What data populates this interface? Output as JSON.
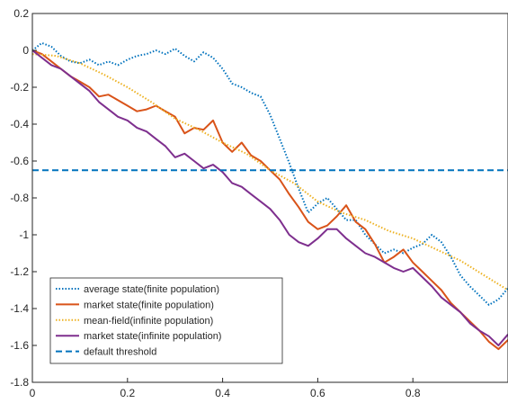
{
  "chart_data": {
    "type": "line",
    "xlim": [
      0,
      1
    ],
    "ylim": [
      -1.8,
      0.2
    ],
    "x_ticks": [
      "0",
      "0.2",
      "0.4",
      "0.6",
      "0.8"
    ],
    "x_tick_values": [
      0,
      0.2,
      0.4,
      0.6,
      0.8
    ],
    "y_ticks": [
      "0.2",
      "0",
      "-0.2",
      "-0.4",
      "-0.6",
      "-0.8",
      "-1",
      "-1.2",
      "-1.4",
      "-1.6",
      "-1.8"
    ],
    "y_tick_values": [
      0.2,
      0,
      -0.2,
      -0.4,
      -0.6,
      -0.8,
      -1,
      -1.2,
      -1.4,
      -1.6,
      -1.8
    ],
    "grid": false,
    "legend_position": "bottom-left",
    "series": [
      {
        "name": "average state(finite population)",
        "color": "#0072BD",
        "style": "dotted",
        "x": [
          0,
          0.02,
          0.04,
          0.06,
          0.08,
          0.1,
          0.12,
          0.14,
          0.16,
          0.18,
          0.2,
          0.22,
          0.24,
          0.26,
          0.28,
          0.3,
          0.32,
          0.34,
          0.36,
          0.38,
          0.4,
          0.42,
          0.44,
          0.46,
          0.48,
          0.5,
          0.52,
          0.54,
          0.56,
          0.58,
          0.6,
          0.62,
          0.64,
          0.66,
          0.68,
          0.7,
          0.72,
          0.74,
          0.76,
          0.78,
          0.8,
          0.82,
          0.84,
          0.86,
          0.88,
          0.9,
          0.92,
          0.94,
          0.96,
          0.98,
          1.0
        ],
        "y": [
          0.0,
          0.04,
          0.02,
          -0.03,
          -0.06,
          -0.07,
          -0.05,
          -0.08,
          -0.06,
          -0.08,
          -0.05,
          -0.03,
          -0.02,
          0.0,
          -0.02,
          0.01,
          -0.03,
          -0.06,
          -0.01,
          -0.04,
          -0.1,
          -0.18,
          -0.2,
          -0.23,
          -0.25,
          -0.35,
          -0.48,
          -0.61,
          -0.75,
          -0.88,
          -0.83,
          -0.8,
          -0.86,
          -0.92,
          -0.92,
          -1.0,
          -1.05,
          -1.1,
          -1.08,
          -1.1,
          -1.07,
          -1.05,
          -1.0,
          -1.04,
          -1.12,
          -1.22,
          -1.28,
          -1.33,
          -1.38,
          -1.35,
          -1.29
        ]
      },
      {
        "name": "market state(finite population)",
        "color": "#D95319",
        "style": "solid",
        "x": [
          0,
          0.02,
          0.04,
          0.06,
          0.08,
          0.1,
          0.12,
          0.14,
          0.16,
          0.18,
          0.2,
          0.22,
          0.24,
          0.26,
          0.28,
          0.3,
          0.32,
          0.34,
          0.36,
          0.38,
          0.4,
          0.42,
          0.44,
          0.46,
          0.48,
          0.5,
          0.52,
          0.54,
          0.56,
          0.58,
          0.6,
          0.62,
          0.64,
          0.66,
          0.68,
          0.7,
          0.72,
          0.74,
          0.76,
          0.78,
          0.8,
          0.82,
          0.84,
          0.86,
          0.88,
          0.9,
          0.92,
          0.94,
          0.96,
          0.98,
          1.0
        ],
        "y": [
          0.0,
          -0.02,
          -0.06,
          -0.1,
          -0.14,
          -0.17,
          -0.2,
          -0.25,
          -0.24,
          -0.27,
          -0.3,
          -0.33,
          -0.32,
          -0.3,
          -0.33,
          -0.36,
          -0.45,
          -0.42,
          -0.43,
          -0.38,
          -0.5,
          -0.55,
          -0.5,
          -0.57,
          -0.6,
          -0.65,
          -0.7,
          -0.78,
          -0.85,
          -0.93,
          -0.97,
          -0.95,
          -0.9,
          -0.84,
          -0.93,
          -0.97,
          -1.05,
          -1.15,
          -1.12,
          -1.08,
          -1.15,
          -1.2,
          -1.25,
          -1.3,
          -1.37,
          -1.42,
          -1.47,
          -1.52,
          -1.58,
          -1.62,
          -1.57
        ]
      },
      {
        "name": "mean-field(infinite population)",
        "color": "#EDB120",
        "style": "dotted",
        "x": [
          0,
          0.05,
          0.1,
          0.15,
          0.2,
          0.25,
          0.3,
          0.35,
          0.4,
          0.45,
          0.5,
          0.55,
          0.6,
          0.65,
          0.7,
          0.75,
          0.8,
          0.85,
          0.9,
          0.95,
          1.0
        ],
        "y": [
          -0.02,
          -0.03,
          -0.07,
          -0.13,
          -0.2,
          -0.28,
          -0.37,
          -0.43,
          -0.5,
          -0.56,
          -0.65,
          -0.72,
          -0.82,
          -0.88,
          -0.92,
          -0.98,
          -1.02,
          -1.08,
          -1.14,
          -1.22,
          -1.3
        ]
      },
      {
        "name": "market state(infinite population)",
        "color": "#7E2F8E",
        "style": "solid",
        "x": [
          0,
          0.02,
          0.04,
          0.06,
          0.08,
          0.1,
          0.12,
          0.14,
          0.16,
          0.18,
          0.2,
          0.22,
          0.24,
          0.26,
          0.28,
          0.3,
          0.32,
          0.34,
          0.36,
          0.38,
          0.4,
          0.42,
          0.44,
          0.46,
          0.48,
          0.5,
          0.52,
          0.54,
          0.56,
          0.58,
          0.6,
          0.62,
          0.64,
          0.66,
          0.68,
          0.7,
          0.72,
          0.74,
          0.76,
          0.78,
          0.8,
          0.82,
          0.84,
          0.86,
          0.88,
          0.9,
          0.92,
          0.94,
          0.96,
          0.98,
          1.0
        ],
        "y": [
          0.0,
          -0.04,
          -0.08,
          -0.1,
          -0.14,
          -0.18,
          -0.22,
          -0.28,
          -0.32,
          -0.36,
          -0.38,
          -0.42,
          -0.44,
          -0.48,
          -0.52,
          -0.58,
          -0.56,
          -0.6,
          -0.64,
          -0.62,
          -0.66,
          -0.72,
          -0.74,
          -0.78,
          -0.82,
          -0.86,
          -0.92,
          -1.0,
          -1.04,
          -1.06,
          -1.02,
          -0.97,
          -0.97,
          -1.02,
          -1.06,
          -1.1,
          -1.12,
          -1.15,
          -1.18,
          -1.2,
          -1.18,
          -1.23,
          -1.28,
          -1.34,
          -1.38,
          -1.42,
          -1.48,
          -1.52,
          -1.55,
          -1.6,
          -1.54
        ]
      },
      {
        "name": "default threshold",
        "color": "#0072BD",
        "style": "dashed",
        "x": [
          0,
          1
        ],
        "y": [
          -0.65,
          -0.65
        ]
      }
    ]
  }
}
